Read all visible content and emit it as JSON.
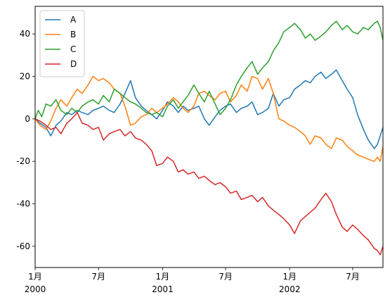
{
  "chart_data": {
    "type": "line",
    "xlim": [
      "2000-01-01",
      "2002-09-26"
    ],
    "ylim": [
      -70,
      53
    ],
    "y_ticks": [
      -60,
      -40,
      -20,
      0,
      20,
      40
    ],
    "x_ticks": [
      {
        "date": "2000-01-01",
        "label": "1月",
        "sublabel": "2000"
      },
      {
        "date": "2000-07-01",
        "label": "7月",
        "sublabel": ""
      },
      {
        "date": "2001-01-01",
        "label": "1月",
        "sublabel": "2001"
      },
      {
        "date": "2001-07-01",
        "label": "7月",
        "sublabel": ""
      },
      {
        "date": "2002-01-01",
        "label": "1月",
        "sublabel": "2002"
      },
      {
        "date": "2002-07-01",
        "label": "7月",
        "sublabel": ""
      }
    ],
    "legend": {
      "position": "upper-left"
    },
    "grid": false,
    "series": [
      {
        "name": "A",
        "color": "#1f77b4",
        "points": [
          [
            "2000-01-01",
            0
          ],
          [
            "2000-01-15",
            -2
          ],
          [
            "2000-02-01",
            -4
          ],
          [
            "2000-02-15",
            -8
          ],
          [
            "2000-03-01",
            -3
          ],
          [
            "2000-03-15",
            -1
          ],
          [
            "2000-04-01",
            3
          ],
          [
            "2000-04-15",
            2
          ],
          [
            "2000-05-01",
            4
          ],
          [
            "2000-05-15",
            3
          ],
          [
            "2000-06-01",
            2
          ],
          [
            "2000-06-15",
            4
          ],
          [
            "2000-07-01",
            5
          ],
          [
            "2000-07-15",
            6
          ],
          [
            "2000-08-01",
            4
          ],
          [
            "2000-08-15",
            3
          ],
          [
            "2000-09-01",
            7
          ],
          [
            "2000-09-15",
            12
          ],
          [
            "2000-10-01",
            18
          ],
          [
            "2000-10-15",
            10
          ],
          [
            "2000-11-01",
            6
          ],
          [
            "2000-11-15",
            4
          ],
          [
            "2000-12-01",
            2
          ],
          [
            "2000-12-15",
            0
          ],
          [
            "2001-01-01",
            4
          ],
          [
            "2001-01-15",
            8
          ],
          [
            "2001-02-01",
            6
          ],
          [
            "2001-02-15",
            3
          ],
          [
            "2001-03-01",
            6
          ],
          [
            "2001-03-15",
            4
          ],
          [
            "2001-04-01",
            5
          ],
          [
            "2001-04-15",
            6
          ],
          [
            "2001-05-01",
            0
          ],
          [
            "2001-05-15",
            -3
          ],
          [
            "2001-06-01",
            1
          ],
          [
            "2001-06-15",
            4
          ],
          [
            "2001-07-01",
            6
          ],
          [
            "2001-07-15",
            7
          ],
          [
            "2001-08-01",
            3
          ],
          [
            "2001-08-15",
            5
          ],
          [
            "2001-09-01",
            6
          ],
          [
            "2001-09-15",
            8
          ],
          [
            "2001-10-01",
            2
          ],
          [
            "2001-10-15",
            3
          ],
          [
            "2001-11-01",
            5
          ],
          [
            "2001-11-15",
            12
          ],
          [
            "2001-12-01",
            6
          ],
          [
            "2001-12-15",
            9
          ],
          [
            "2002-01-01",
            10
          ],
          [
            "2002-01-15",
            14
          ],
          [
            "2002-02-01",
            16
          ],
          [
            "2002-02-15",
            18
          ],
          [
            "2002-03-01",
            17
          ],
          [
            "2002-03-15",
            20
          ],
          [
            "2002-04-01",
            22
          ],
          [
            "2002-04-15",
            19
          ],
          [
            "2002-05-01",
            21
          ],
          [
            "2002-05-15",
            23
          ],
          [
            "2002-06-01",
            18
          ],
          [
            "2002-06-15",
            14
          ],
          [
            "2002-07-01",
            10
          ],
          [
            "2002-07-15",
            2
          ],
          [
            "2002-08-01",
            -5
          ],
          [
            "2002-08-15",
            -10
          ],
          [
            "2002-09-01",
            -14
          ],
          [
            "2002-09-10",
            -12
          ],
          [
            "2002-09-18",
            -8
          ],
          [
            "2002-09-26",
            -4
          ]
        ]
      },
      {
        "name": "B",
        "color": "#ff7f0e",
        "points": [
          [
            "2000-01-01",
            0
          ],
          [
            "2000-01-15",
            -3
          ],
          [
            "2000-02-01",
            -5
          ],
          [
            "2000-02-15",
            -1
          ],
          [
            "2000-03-01",
            5
          ],
          [
            "2000-03-15",
            9
          ],
          [
            "2000-04-01",
            6
          ],
          [
            "2000-04-15",
            10
          ],
          [
            "2000-05-01",
            14
          ],
          [
            "2000-05-15",
            12
          ],
          [
            "2000-06-01",
            16
          ],
          [
            "2000-06-15",
            20
          ],
          [
            "2000-07-01",
            18
          ],
          [
            "2000-07-15",
            19
          ],
          [
            "2000-08-01",
            17
          ],
          [
            "2000-08-15",
            14
          ],
          [
            "2000-09-01",
            12
          ],
          [
            "2000-09-15",
            6
          ],
          [
            "2000-10-01",
            -3
          ],
          [
            "2000-10-15",
            -2
          ],
          [
            "2000-11-01",
            1
          ],
          [
            "2000-11-15",
            2
          ],
          [
            "2000-12-01",
            5
          ],
          [
            "2000-12-15",
            3
          ],
          [
            "2001-01-01",
            5
          ],
          [
            "2001-01-15",
            7
          ],
          [
            "2001-02-01",
            10
          ],
          [
            "2001-02-15",
            8
          ],
          [
            "2001-03-01",
            5
          ],
          [
            "2001-03-15",
            3
          ],
          [
            "2001-04-01",
            6
          ],
          [
            "2001-04-15",
            12
          ],
          [
            "2001-05-01",
            13
          ],
          [
            "2001-05-15",
            11
          ],
          [
            "2001-06-01",
            9
          ],
          [
            "2001-06-15",
            12
          ],
          [
            "2001-07-01",
            13
          ],
          [
            "2001-07-15",
            8
          ],
          [
            "2001-08-01",
            11
          ],
          [
            "2001-08-15",
            16
          ],
          [
            "2001-09-01",
            13
          ],
          [
            "2001-09-15",
            20
          ],
          [
            "2001-10-01",
            19
          ],
          [
            "2001-10-15",
            14
          ],
          [
            "2001-11-01",
            19
          ],
          [
            "2001-11-15",
            12
          ],
          [
            "2001-12-01",
            0
          ],
          [
            "2001-12-15",
            -1
          ],
          [
            "2002-01-01",
            -3
          ],
          [
            "2002-01-15",
            -4
          ],
          [
            "2002-02-01",
            -6
          ],
          [
            "2002-02-15",
            -8
          ],
          [
            "2002-03-01",
            -12
          ],
          [
            "2002-03-15",
            -8
          ],
          [
            "2002-04-01",
            -9
          ],
          [
            "2002-04-15",
            -12
          ],
          [
            "2002-05-01",
            -14
          ],
          [
            "2002-05-15",
            -9
          ],
          [
            "2002-06-01",
            -10
          ],
          [
            "2002-06-15",
            -13
          ],
          [
            "2002-07-01",
            -15
          ],
          [
            "2002-07-15",
            -17
          ],
          [
            "2002-08-01",
            -18
          ],
          [
            "2002-08-15",
            -19
          ],
          [
            "2002-09-01",
            -20
          ],
          [
            "2002-09-10",
            -18
          ],
          [
            "2002-09-18",
            -20
          ],
          [
            "2002-09-26",
            -13
          ]
        ]
      },
      {
        "name": "C",
        "color": "#2ca02c",
        "points": [
          [
            "2000-01-01",
            0
          ],
          [
            "2000-01-10",
            4
          ],
          [
            "2000-01-20",
            1
          ],
          [
            "2000-02-01",
            7
          ],
          [
            "2000-02-15",
            6
          ],
          [
            "2000-03-01",
            9
          ],
          [
            "2000-03-15",
            4
          ],
          [
            "2000-04-01",
            2
          ],
          [
            "2000-04-15",
            5
          ],
          [
            "2000-05-01",
            3
          ],
          [
            "2000-05-15",
            6
          ],
          [
            "2000-06-01",
            8
          ],
          [
            "2000-06-15",
            9
          ],
          [
            "2000-07-01",
            7
          ],
          [
            "2000-07-15",
            11
          ],
          [
            "2000-08-01",
            8
          ],
          [
            "2000-08-15",
            14
          ],
          [
            "2000-09-01",
            12
          ],
          [
            "2000-09-15",
            10
          ],
          [
            "2000-10-01",
            8
          ],
          [
            "2000-10-15",
            7
          ],
          [
            "2000-11-01",
            5
          ],
          [
            "2000-11-15",
            3
          ],
          [
            "2000-12-01",
            2
          ],
          [
            "2000-12-15",
            3
          ],
          [
            "2001-01-01",
            1
          ],
          [
            "2001-01-15",
            6
          ],
          [
            "2001-02-01",
            9
          ],
          [
            "2001-02-15",
            5
          ],
          [
            "2001-03-01",
            8
          ],
          [
            "2001-03-15",
            11
          ],
          [
            "2001-04-01",
            16
          ],
          [
            "2001-04-15",
            12
          ],
          [
            "2001-05-01",
            8
          ],
          [
            "2001-05-15",
            13
          ],
          [
            "2001-06-01",
            7
          ],
          [
            "2001-06-15",
            2
          ],
          [
            "2001-07-01",
            5
          ],
          [
            "2001-07-15",
            9
          ],
          [
            "2001-08-01",
            16
          ],
          [
            "2001-08-15",
            20
          ],
          [
            "2001-09-01",
            24
          ],
          [
            "2001-09-15",
            27
          ],
          [
            "2001-10-01",
            21
          ],
          [
            "2001-10-15",
            24
          ],
          [
            "2001-11-01",
            27
          ],
          [
            "2001-11-15",
            32
          ],
          [
            "2001-12-01",
            36
          ],
          [
            "2001-12-15",
            41
          ],
          [
            "2002-01-01",
            43
          ],
          [
            "2002-01-15",
            45
          ],
          [
            "2002-02-01",
            42
          ],
          [
            "2002-02-15",
            38
          ],
          [
            "2002-03-01",
            40
          ],
          [
            "2002-03-15",
            37
          ],
          [
            "2002-04-01",
            39
          ],
          [
            "2002-04-15",
            41
          ],
          [
            "2002-05-01",
            44
          ],
          [
            "2002-05-15",
            46
          ],
          [
            "2002-06-01",
            42
          ],
          [
            "2002-06-15",
            44
          ],
          [
            "2002-07-01",
            41
          ],
          [
            "2002-07-15",
            40
          ],
          [
            "2002-08-01",
            43
          ],
          [
            "2002-08-15",
            42
          ],
          [
            "2002-09-01",
            45
          ],
          [
            "2002-09-10",
            46
          ],
          [
            "2002-09-18",
            43
          ],
          [
            "2002-09-26",
            37
          ]
        ]
      },
      {
        "name": "D",
        "color": "#d62728",
        "points": [
          [
            "2000-01-01",
            0
          ],
          [
            "2000-01-15",
            -1
          ],
          [
            "2000-02-01",
            -3
          ],
          [
            "2000-02-15",
            -5
          ],
          [
            "2000-03-01",
            -4
          ],
          [
            "2000-03-15",
            -7
          ],
          [
            "2000-04-01",
            -2
          ],
          [
            "2000-04-15",
            0
          ],
          [
            "2000-05-01",
            3
          ],
          [
            "2000-05-15",
            -2
          ],
          [
            "2000-06-01",
            -3
          ],
          [
            "2000-06-15",
            -5
          ],
          [
            "2000-07-01",
            -4
          ],
          [
            "2000-07-15",
            -10
          ],
          [
            "2000-08-01",
            -7
          ],
          [
            "2000-08-15",
            -6
          ],
          [
            "2000-09-01",
            -5
          ],
          [
            "2000-09-15",
            -8
          ],
          [
            "2000-10-01",
            -6
          ],
          [
            "2000-10-15",
            -9
          ],
          [
            "2000-11-01",
            -10
          ],
          [
            "2000-11-15",
            -12
          ],
          [
            "2000-12-01",
            -15
          ],
          [
            "2000-12-15",
            -22
          ],
          [
            "2001-01-01",
            -21
          ],
          [
            "2001-01-15",
            -18
          ],
          [
            "2001-02-01",
            -20
          ],
          [
            "2001-02-15",
            -25
          ],
          [
            "2001-03-01",
            -24
          ],
          [
            "2001-03-15",
            -26
          ],
          [
            "2001-04-01",
            -25
          ],
          [
            "2001-04-15",
            -28
          ],
          [
            "2001-05-01",
            -27
          ],
          [
            "2001-05-15",
            -29
          ],
          [
            "2001-06-01",
            -31
          ],
          [
            "2001-06-15",
            -30
          ],
          [
            "2001-07-01",
            -32
          ],
          [
            "2001-07-15",
            -35
          ],
          [
            "2001-08-01",
            -34
          ],
          [
            "2001-08-15",
            -38
          ],
          [
            "2001-09-01",
            -37
          ],
          [
            "2001-09-15",
            -36
          ],
          [
            "2001-10-01",
            -39
          ],
          [
            "2001-10-15",
            -37
          ],
          [
            "2001-11-01",
            -41
          ],
          [
            "2001-11-15",
            -43
          ],
          [
            "2001-12-01",
            -45
          ],
          [
            "2001-12-15",
            -47
          ],
          [
            "2002-01-01",
            -50
          ],
          [
            "2002-01-15",
            -54
          ],
          [
            "2002-02-01",
            -48
          ],
          [
            "2002-02-15",
            -46
          ],
          [
            "2002-03-01",
            -44
          ],
          [
            "2002-03-15",
            -42
          ],
          [
            "2002-04-01",
            -38
          ],
          [
            "2002-04-15",
            -35
          ],
          [
            "2002-05-01",
            -39
          ],
          [
            "2002-05-15",
            -45
          ],
          [
            "2002-06-01",
            -51
          ],
          [
            "2002-06-15",
            -53
          ],
          [
            "2002-07-01",
            -50
          ],
          [
            "2002-07-15",
            -52
          ],
          [
            "2002-08-01",
            -55
          ],
          [
            "2002-08-15",
            -57
          ],
          [
            "2002-09-01",
            -61
          ],
          [
            "2002-09-10",
            -62
          ],
          [
            "2002-09-18",
            -64
          ],
          [
            "2002-09-26",
            -60
          ]
        ]
      }
    ]
  }
}
